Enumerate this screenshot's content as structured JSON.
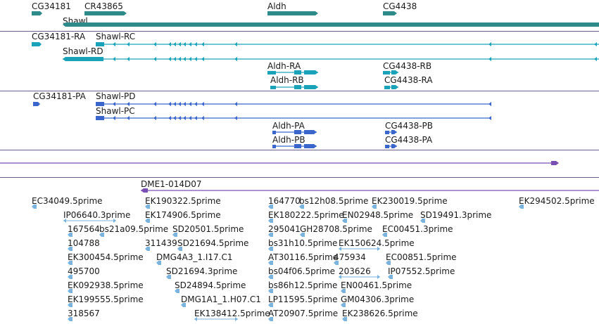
{
  "colors": {
    "gene": "#2e8b8b",
    "transcript_ra": "#1aa3b8",
    "protein": "#3a66cc",
    "contig": "#7a4fb3",
    "est": "#7ab3dd",
    "separator": "#6b5d8e"
  },
  "genes": {
    "cg34181": "CG34181",
    "cr43865": "CR43865",
    "aldh": "Aldh",
    "cg4438": "CG4438",
    "shawl": "Shawl"
  },
  "transcripts": {
    "cg34181_ra": "CG34181-RA",
    "shawl_rc": "Shawl-RC",
    "shawl_rd": "Shawl-RD",
    "aldh_ra": "Aldh-RA",
    "aldh_rb": "Aldh-RB",
    "cg4438_rb": "CG4438-RB",
    "cg4438_ra": "CG4438-RA"
  },
  "proteins": {
    "cg34181_pa": "CG34181-PA",
    "shawl_pd": "Shawl-PD",
    "shawl_pc": "Shawl-PC",
    "aldh_pa": "Aldh-PA",
    "aldh_pb": "Aldh-PB",
    "cg4438_pb": "CG4438-PB",
    "cg4438_pa": "CG4438-PA"
  },
  "contig": {
    "dme1_014d07": "DME1-014D07"
  },
  "ests": {
    "ec34049": "EC34049.5prime",
    "ek190322": "EK190322.5prime",
    "e164770": "164770",
    "bs12h08": "bs12h08.5prime",
    "ek230019": "EK230019.5prime",
    "ek294502": "EK294502.5prime",
    "ip06640": "IP06640.3prime",
    "ek174906": "EK174906.5prime",
    "ek180222": "EK180222.5prime",
    "en02948": "EN02948.5prime",
    "sd19491": "SD19491.3prime",
    "e167564": "167564",
    "bs21a09": "bs21a09.5prime",
    "sd20501": "SD20501.5prime",
    "e295041": "295041",
    "gh28708": "GH28708.5prime",
    "ec00451": "EC00451.3prime",
    "e104788": "104788",
    "e311439": "311439",
    "sd21694_a": "SD21694.5prime",
    "bs31h10": "bs31h10.5prime",
    "ek150624": "EK150624.5prime",
    "ek300454": "EK300454.5prime",
    "dmg4a3": "DMG4A3_1.I17.C1",
    "at30116": "AT30116.5prime",
    "e475934": "475934",
    "ec00851": "EC00851.5prime",
    "e495700": "495700",
    "sd21694_b": "SD21694.3prime",
    "bs04f06": "bs04f06.5prime",
    "e203626": "203626",
    "ip07552": "IP07552.5prime",
    "ek092938": "EK092938.5prime",
    "sd24894": "SD24894.5prime",
    "bs86h12": "bs86h12.5prime",
    "en00461": "EN00461.5prime",
    "ek199555": "EK199555.5prime",
    "dmg1a1": "DMG1A1_1.H07.C1",
    "lp11595": "LP11595.5prime",
    "gm04306": "GM04306.3prime",
    "e318567": "318567",
    "ek138412": "EK138412.5prime",
    "at20907": "AT20907.5prime",
    "ek238626": "EK238626.5prime"
  }
}
